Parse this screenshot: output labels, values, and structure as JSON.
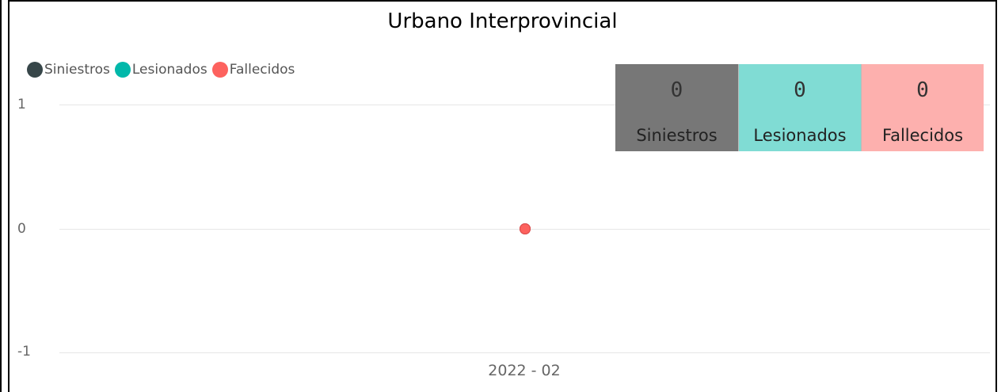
{
  "chart_data": {
    "type": "line",
    "title": "Urbano Interprovincial",
    "xlabel": "",
    "ylabel": "",
    "categories": [
      "2022 - 02"
    ],
    "series": [
      {
        "name": "Siniestros",
        "color": "#374649",
        "values": [
          0
        ]
      },
      {
        "name": "Lesionados",
        "color": "#01b8aa",
        "values": [
          0
        ]
      },
      {
        "name": "Fallecidos",
        "color": "#fd625e",
        "values": [
          0
        ]
      }
    ],
    "ylim": [
      -1,
      1
    ],
    "yticks": [
      "1",
      "0",
      "-1"
    ],
    "grid": true,
    "legend": "top-left"
  },
  "cards": [
    {
      "value": "0",
      "label": "Siniestros",
      "color": "#777777"
    },
    {
      "value": "0",
      "label": "Lesionados",
      "color": "#80dcd4"
    },
    {
      "value": "0",
      "label": "Fallecidos",
      "color": "#fdb0ae"
    }
  ]
}
